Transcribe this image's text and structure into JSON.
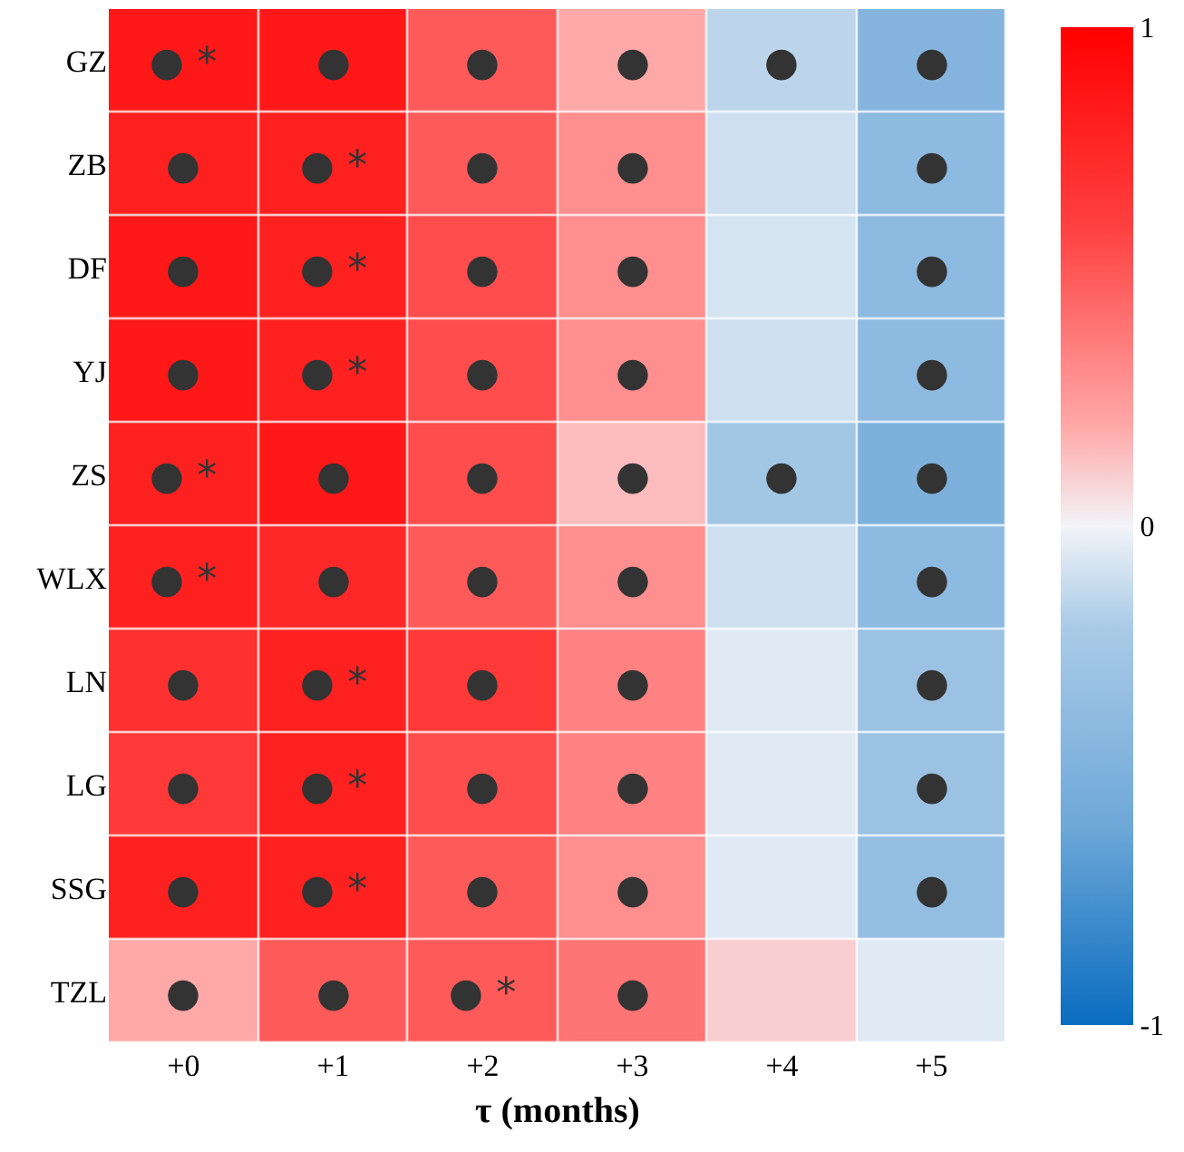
{
  "chart_data": {
    "type": "heatmap",
    "xlabel": "τ (months)",
    "categories": [
      "+0",
      "+1",
      "+2",
      "+3",
      "+4",
      "+5"
    ],
    "y_categories": [
      "GZ",
      "ZB",
      "DF",
      "YJ",
      "ZS",
      "WLX",
      "LN",
      "LG",
      "SSG",
      "TZL"
    ],
    "cells": [
      [
        0.85,
        0.85,
        0.5,
        0.2,
        -0.15,
        -0.45
      ],
      [
        0.8,
        0.8,
        0.5,
        0.3,
        -0.1,
        -0.4
      ],
      [
        0.85,
        0.8,
        0.55,
        0.3,
        -0.08,
        -0.4
      ],
      [
        0.85,
        0.8,
        0.55,
        0.3,
        -0.1,
        -0.4
      ],
      [
        0.8,
        0.85,
        0.55,
        0.15,
        -0.25,
        -0.5
      ],
      [
        0.8,
        0.75,
        0.5,
        0.3,
        -0.1,
        -0.4
      ],
      [
        0.7,
        0.8,
        0.65,
        0.35,
        -0.05,
        -0.3
      ],
      [
        0.65,
        0.8,
        0.55,
        0.35,
        -0.05,
        -0.3
      ],
      [
        0.8,
        0.8,
        0.5,
        0.3,
        -0.05,
        -0.35
      ],
      [
        0.2,
        0.5,
        0.5,
        0.4,
        0.1,
        -0.05
      ]
    ],
    "cell_labels": [
      [
        "● *",
        "●",
        "●",
        "●",
        "●",
        "●"
      ],
      [
        "●",
        "● *",
        "●",
        "●",
        null,
        "●"
      ],
      [
        "●",
        "● *",
        "●",
        "●",
        null,
        "●"
      ],
      [
        "●",
        "● *",
        "●",
        "●",
        null,
        "●"
      ],
      [
        "● *",
        "●",
        "●",
        "●",
        "●",
        "●"
      ],
      [
        "● *",
        "●",
        "●",
        "●",
        null,
        "●"
      ],
      [
        "●",
        "● *",
        "●",
        "●",
        null,
        "●"
      ],
      [
        "●",
        "● *",
        "●",
        "●",
        null,
        "●"
      ],
      [
        "●",
        "● *",
        "●",
        "●",
        null,
        "●"
      ],
      [
        "●",
        "●",
        "● *",
        "●",
        null,
        null
      ]
    ],
    "clim": [
      -1,
      1
    ],
    "cticks": [
      -1,
      0,
      1
    ]
  }
}
